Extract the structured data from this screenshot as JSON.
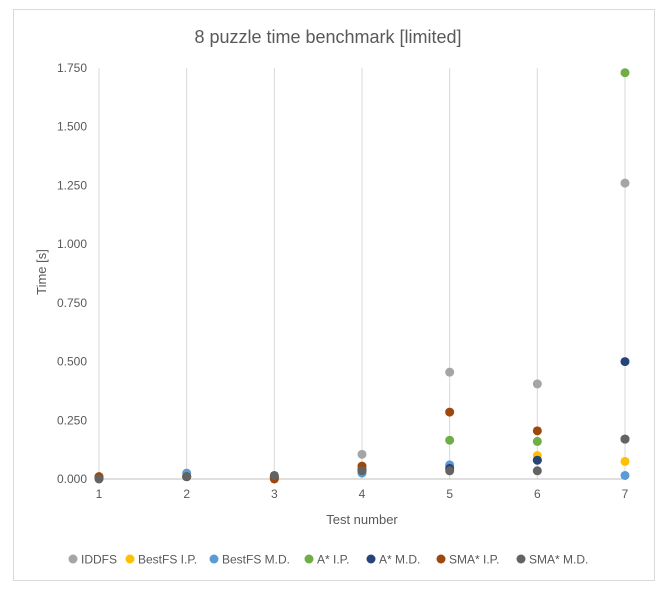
{
  "chart_data": {
    "type": "scatter",
    "title": "8 puzzle time benchmark [limited]",
    "xlabel": "Test number",
    "ylabel": "Time [s]",
    "x": [
      1,
      2,
      3,
      4,
      5,
      6,
      7
    ],
    "xlim": [
      1,
      7
    ],
    "ylim": [
      0,
      1.75
    ],
    "yticks": [
      "0.000",
      "0.250",
      "0.500",
      "0.750",
      "1.000",
      "1.250",
      "1.500",
      "1.750"
    ],
    "grid": "vertical",
    "legend_position": "bottom",
    "series": [
      {
        "name": "IDDFS",
        "color": "#a5a5a5",
        "values": [
          0.01,
          0.01,
          0.01,
          0.105,
          0.455,
          0.405,
          1.26
        ]
      },
      {
        "name": "BestFS I.P.",
        "color": "#ffc000",
        "values": [
          0.005,
          0.01,
          0.005,
          0.03,
          0.05,
          0.1,
          0.075
        ]
      },
      {
        "name": "BestFS M.D.",
        "color": "#5b9bd5",
        "values": [
          0.005,
          0.025,
          0.01,
          0.025,
          0.06,
          0.08,
          0.015
        ]
      },
      {
        "name": "A* I.P.",
        "color": "#70ad47",
        "values": [
          0.005,
          0.01,
          0.005,
          0.04,
          0.165,
          0.16,
          1.73
        ]
      },
      {
        "name": "A* M.D.",
        "color": "#264478",
        "values": [
          0.005,
          0.01,
          0.005,
          0.04,
          0.045,
          0.08,
          0.5
        ]
      },
      {
        "name": "SMA* I.P.",
        "color": "#9e480e",
        "values": [
          0.01,
          0.01,
          0.0,
          0.055,
          0.285,
          0.205,
          0.17
        ]
      },
      {
        "name": "SMA* M.D.",
        "color": "#636363",
        "values": [
          0.0,
          0.01,
          0.015,
          0.035,
          0.035,
          0.035,
          0.17
        ]
      }
    ]
  }
}
